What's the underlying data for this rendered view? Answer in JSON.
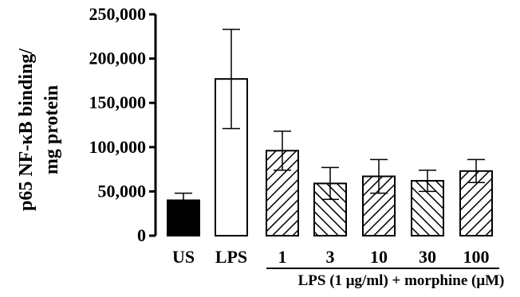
{
  "chart_data": {
    "type": "bar",
    "categories": [
      "US",
      "LPS",
      "1",
      "3",
      "10",
      "30",
      "100"
    ],
    "values": [
      40000,
      177000,
      96000,
      59000,
      67000,
      62000,
      73000
    ],
    "errors": [
      8000,
      56000,
      22000,
      18000,
      19000,
      12000,
      13000
    ],
    "fills": [
      "solid",
      "open",
      "hatch-up",
      "hatch-down",
      "hatch-up",
      "hatch-down",
      "hatch-up"
    ],
    "ylabel_lines": [
      "p65 NF-κB binding/",
      "mg protein"
    ],
    "xlabel": "",
    "group_label": "LPS (1 μg/ml) + morphine (μM)",
    "ylim": [
      0,
      250000
    ],
    "yticks": [
      0,
      50000,
      100000,
      150000,
      200000,
      250000
    ],
    "ytick_labels": [
      "0",
      "50,000",
      "100,000",
      "150,000",
      "200,000",
      "250,000"
    ],
    "grid": false,
    "colors": {
      "bar_solid": "#000000",
      "bar_stroke": "#000000",
      "background": "#ffffff"
    }
  }
}
